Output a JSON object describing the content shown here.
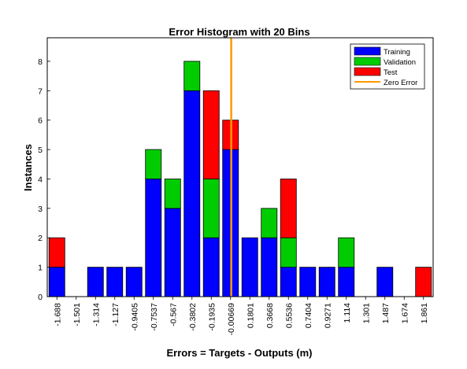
{
  "chart_data": {
    "type": "bar",
    "stacked": true,
    "title": "Error Histogram with 20 Bins",
    "xlabel": "Errors = Targets - Outputs (m)",
    "ylabel": "Instances",
    "ylim": [
      0,
      8.8
    ],
    "yticks": [
      0,
      1,
      2,
      3,
      4,
      5,
      6,
      7,
      8
    ],
    "categories": [
      "-1.688",
      "-1.501",
      "-1.314",
      "-1.127",
      "-0.9405",
      "-0.7537",
      "-0.567",
      "-0.3802",
      "-0.1935",
      "-0.00669",
      "0.1801",
      "0.3668",
      "0.5536",
      "0.7404",
      "0.9271",
      "1.114",
      "1.301",
      "1.487",
      "1.674",
      "1.861"
    ],
    "series": [
      {
        "name": "Training",
        "color": "#0000ff",
        "values": [
          1,
          0,
          1,
          1,
          1,
          4,
          3,
          7,
          2,
          5,
          2,
          2,
          1,
          1,
          1,
          1,
          0,
          1,
          0,
          0
        ]
      },
      {
        "name": "Validation",
        "color": "#00cc00",
        "values": [
          0,
          0,
          0,
          0,
          0,
          1,
          1,
          1,
          2,
          0,
          0,
          1,
          1,
          0,
          0,
          1,
          0,
          0,
          0,
          0
        ]
      },
      {
        "name": "Test",
        "color": "#ff0000",
        "values": [
          1,
          0,
          0,
          0,
          0,
          0,
          0,
          0,
          3,
          1,
          0,
          0,
          2,
          0,
          0,
          0,
          0,
          0,
          0,
          1
        ]
      }
    ],
    "zero_error": {
      "name": "Zero Error",
      "color": "#ff9900",
      "x": 0
    },
    "legend_placement": "top-right",
    "grid": false
  }
}
